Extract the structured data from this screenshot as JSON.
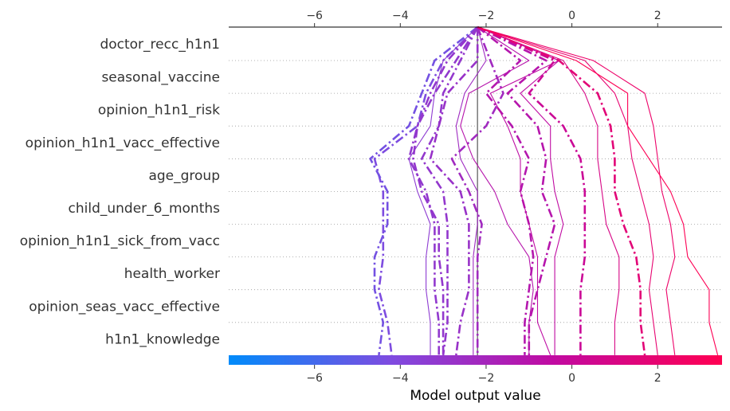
{
  "chart_data": {
    "type": "line",
    "title": "",
    "xlabel": "Model output value",
    "ylabel": "",
    "xlim": [
      -8.0,
      3.5
    ],
    "x_ticks": [
      -6,
      -4,
      -2,
      0,
      2
    ],
    "x_tick_labels": [
      "−6",
      "−4",
      "−2",
      "0",
      "2"
    ],
    "base_value": -2.2,
    "features": [
      "doctor_recc_h1n1",
      "seasonal_vaccine",
      "opinion_h1n1_risk",
      "opinion_h1n1_vacc_effective",
      "age_group",
      "child_under_6_months",
      "opinion_h1n1_sick_from_vacc",
      "health_worker",
      "opinion_seas_vacc_effective",
      "h1n1_knowledge"
    ],
    "colormap": [
      "#008bfa",
      "#7f4be0",
      "#c10aa1",
      "#ff0052"
    ],
    "samples": [
      {
        "style": "dashdot",
        "values": [
          -2.2,
          -3.0,
          -3.4,
          -3.6,
          -4.6,
          -4.4,
          -4.4,
          -4.4,
          -4.5,
          -4.3,
          -4.2
        ]
      },
      {
        "style": "dashdot",
        "values": [
          -2.2,
          -3.2,
          -3.5,
          -3.8,
          -4.7,
          -4.3,
          -4.3,
          -4.6,
          -4.6,
          -4.4,
          -4.5
        ]
      },
      {
        "style": "solid",
        "values": [
          -2.2,
          -3.0,
          -3.2,
          -3.3,
          -3.8,
          -3.6,
          -3.3,
          -3.4,
          -3.4,
          -3.3,
          -3.3
        ]
      },
      {
        "style": "dashdot",
        "values": [
          -2.2,
          -2.7,
          -3.2,
          -3.6,
          -3.8,
          -3.4,
          -3.2,
          -3.2,
          -3.2,
          -3.1,
          -3.1
        ]
      },
      {
        "style": "dashdot",
        "values": [
          -2.2,
          -2.9,
          -3.3,
          -3.6,
          -3.7,
          -3.5,
          -3.1,
          -3.1,
          -3.0,
          -3.0,
          -3.0
        ]
      },
      {
        "style": "dashdot",
        "values": [
          -2.2,
          -2.6,
          -3.0,
          -3.1,
          -3.5,
          -3.0,
          -2.9,
          -2.9,
          -2.9,
          -2.9,
          -3.0
        ]
      },
      {
        "style": "dashdot",
        "values": [
          -2.2,
          -2.2,
          -2.9,
          -3.1,
          -3.3,
          -2.6,
          -2.4,
          -2.4,
          -2.4,
          -2.6,
          -2.7
        ]
      },
      {
        "style": "solid",
        "values": [
          -2.2,
          -2.0,
          -2.5,
          -2.7,
          -2.6,
          -2.2,
          -2.2,
          -2.3,
          -2.3,
          -2.3,
          -2.3
        ]
      },
      {
        "style": "dashdot",
        "values": [
          -2.2,
          -1.9,
          -1.6,
          -2.0,
          -2.8,
          -2.4,
          -2.1,
          -2.2,
          -2.2,
          -2.2,
          -2.2
        ]
      },
      {
        "style": "solid",
        "values": [
          -2.2,
          -1.0,
          -2.4,
          -2.6,
          -2.3,
          -1.8,
          -1.5,
          -1.0,
          -0.9,
          -1.0,
          -1.0
        ]
      },
      {
        "style": "dashdot",
        "values": [
          -2.2,
          -1.2,
          -2.0,
          -1.4,
          -1.0,
          -1.2,
          -1.0,
          -0.9,
          -1.0,
          -1.1,
          -1.1
        ]
      },
      {
        "style": "solid",
        "values": [
          -2.2,
          -0.3,
          -1.9,
          -1.5,
          -1.2,
          -1.2,
          -1.0,
          -0.8,
          -0.8,
          -0.8,
          -0.5
        ]
      },
      {
        "style": "dashdot",
        "values": [
          -2.2,
          -0.6,
          -1.5,
          -0.8,
          -0.6,
          -0.7,
          -0.4,
          -0.6,
          -0.8,
          -1.0,
          -1.0
        ]
      },
      {
        "style": "solid",
        "values": [
          -2.2,
          -0.3,
          -1.2,
          -0.5,
          -0.5,
          -0.4,
          -0.2,
          -0.4,
          -0.4,
          -0.4,
          -0.4
        ]
      },
      {
        "style": "dashdot",
        "values": [
          -2.2,
          -0.4,
          -1.0,
          -0.2,
          0.2,
          0.3,
          0.3,
          0.3,
          0.2,
          0.2,
          0.2
        ]
      },
      {
        "style": "solid",
        "values": [
          -2.2,
          -0.2,
          0.3,
          0.6,
          0.6,
          0.7,
          0.8,
          1.1,
          1.1,
          1.0,
          1.0
        ]
      },
      {
        "style": "dashdot",
        "values": [
          -2.2,
          -0.3,
          0.6,
          0.9,
          1.0,
          1.0,
          1.2,
          1.5,
          1.6,
          1.6,
          1.7
        ]
      },
      {
        "style": "solid",
        "values": [
          -2.2,
          0.3,
          1.0,
          1.3,
          1.4,
          1.6,
          1.8,
          1.9,
          1.8,
          1.9,
          2.0
        ]
      },
      {
        "style": "solid",
        "values": [
          -2.2,
          0.5,
          1.7,
          1.9,
          2.0,
          2.1,
          2.3,
          2.4,
          2.2,
          2.3,
          2.4
        ]
      },
      {
        "style": "solid",
        "values": [
          -2.2,
          0.1,
          1.3,
          1.3,
          1.8,
          2.3,
          2.6,
          2.7,
          3.2,
          3.2,
          3.4
        ]
      }
    ]
  }
}
